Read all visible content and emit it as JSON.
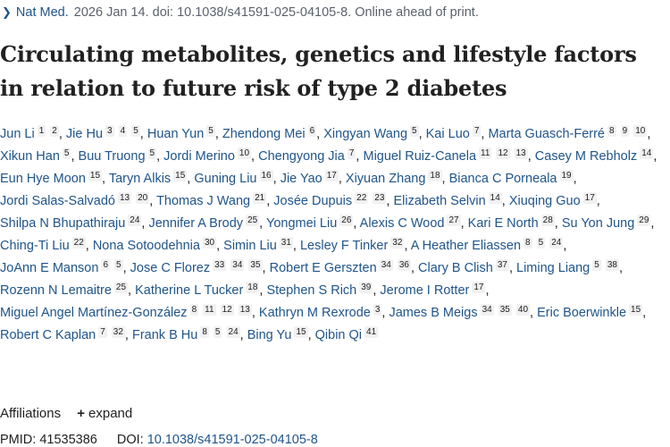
{
  "citation": {
    "journal": "Nat Med.",
    "details": "2026 Jan 14. doi: 10.1038/s41591-025-04105-8. Online ahead of print."
  },
  "title_line1": "Circulating metabolites, genetics and lifestyle factors",
  "title_line2": "in relation to future risk of type 2 diabetes",
  "authors": [
    {
      "name": "Jun Li",
      "affs": [
        "1",
        "2"
      ]
    },
    {
      "name": "Jie Hu",
      "affs": [
        "3",
        "4",
        "5"
      ]
    },
    {
      "name": "Huan Yun",
      "affs": [
        "5"
      ]
    },
    {
      "name": "Zhendong Mei",
      "affs": [
        "6"
      ]
    },
    {
      "name": "Xingyan Wang",
      "affs": [
        "5"
      ]
    },
    {
      "name": "Kai Luo",
      "affs": [
        "7"
      ]
    },
    {
      "name": "Marta Guasch-Ferré",
      "affs": [
        "8",
        "9",
        "10"
      ]
    },
    {
      "name": "Xikun Han",
      "affs": [
        "5"
      ]
    },
    {
      "name": "Buu Truong",
      "affs": [
        "5"
      ]
    },
    {
      "name": "Jordi Merino",
      "affs": [
        "10"
      ]
    },
    {
      "name": "Chengyong Jia",
      "affs": [
        "7"
      ]
    },
    {
      "name": "Miguel Ruiz-Canela",
      "affs": [
        "11",
        "12",
        "13"
      ]
    },
    {
      "name": "Casey M Rebholz",
      "affs": [
        "14"
      ]
    },
    {
      "name": "Eun Hye Moon",
      "affs": [
        "15"
      ]
    },
    {
      "name": "Taryn Alkis",
      "affs": [
        "15"
      ]
    },
    {
      "name": "Guning Liu",
      "affs": [
        "16"
      ]
    },
    {
      "name": "Jie Yao",
      "affs": [
        "17"
      ]
    },
    {
      "name": "Xiyuan Zhang",
      "affs": [
        "18"
      ]
    },
    {
      "name": "Bianca C Porneala",
      "affs": [
        "19"
      ]
    },
    {
      "name": "Jordi Salas-Salvadó",
      "affs": [
        "13",
        "20"
      ]
    },
    {
      "name": "Thomas J Wang",
      "affs": [
        "21"
      ]
    },
    {
      "name": "Josée Dupuis",
      "affs": [
        "22",
        "23"
      ]
    },
    {
      "name": "Elizabeth Selvin",
      "affs": [
        "14"
      ]
    },
    {
      "name": "Xiuqing Guo",
      "affs": [
        "17"
      ]
    },
    {
      "name": "Shilpa N Bhupathiraju",
      "affs": [
        "24"
      ]
    },
    {
      "name": "Jennifer A Brody",
      "affs": [
        "25"
      ]
    },
    {
      "name": "Yongmei Liu",
      "affs": [
        "26"
      ]
    },
    {
      "name": "Alexis C Wood",
      "affs": [
        "27"
      ]
    },
    {
      "name": "Kari E North",
      "affs": [
        "28"
      ]
    },
    {
      "name": "Su Yon Jung",
      "affs": [
        "29"
      ]
    },
    {
      "name": "Ching-Ti Liu",
      "affs": [
        "22"
      ]
    },
    {
      "name": "Nona Sotoodehnia",
      "affs": [
        "30"
      ]
    },
    {
      "name": "Simin Liu",
      "affs": [
        "31"
      ]
    },
    {
      "name": "Lesley F Tinker",
      "affs": [
        "32"
      ]
    },
    {
      "name": "A Heather Eliassen",
      "affs": [
        "8",
        "5",
        "24"
      ]
    },
    {
      "name": "JoAnn E Manson",
      "affs": [
        "6",
        "5"
      ]
    },
    {
      "name": "Jose C Florez",
      "affs": [
        "33",
        "34",
        "35"
      ]
    },
    {
      "name": "Robert E Gerszten",
      "affs": [
        "34",
        "36"
      ]
    },
    {
      "name": "Clary B Clish",
      "affs": [
        "37"
      ]
    },
    {
      "name": "Liming Liang",
      "affs": [
        "5",
        "38"
      ]
    },
    {
      "name": "Rozenn N Lemaitre",
      "affs": [
        "25"
      ]
    },
    {
      "name": "Katherine L Tucker",
      "affs": [
        "18"
      ]
    },
    {
      "name": "Stephen S Rich",
      "affs": [
        "39"
      ]
    },
    {
      "name": "Jerome I Rotter",
      "affs": [
        "17"
      ]
    },
    {
      "name": "Miguel Angel Martínez-González",
      "affs": [
        "8",
        "11",
        "12",
        "13"
      ]
    },
    {
      "name": "Kathryn M Rexrode",
      "affs": [
        "3"
      ]
    },
    {
      "name": "James B Meigs",
      "affs": [
        "34",
        "35",
        "40"
      ]
    },
    {
      "name": "Eric Boerwinkle",
      "affs": [
        "15"
      ]
    },
    {
      "name": "Robert C Kaplan",
      "affs": [
        "7",
        "32"
      ]
    },
    {
      "name": "Frank B Hu",
      "affs": [
        "8",
        "5",
        "24"
      ]
    },
    {
      "name": "Bing Yu",
      "affs": [
        "15"
      ]
    },
    {
      "name": "Qibin Qi",
      "affs": [
        "41"
      ]
    }
  ],
  "affiliations": {
    "label": "Affiliations",
    "expand_label": "expand",
    "plus": "+"
  },
  "ids": {
    "pmid_label": "PMID:",
    "pmid": "41535386",
    "doi_label": "DOI:",
    "doi": "10.1038/s41591-025-04105-8"
  },
  "colors": {
    "link": "#20558a",
    "text": "#212121",
    "muted": "#5b616b"
  }
}
